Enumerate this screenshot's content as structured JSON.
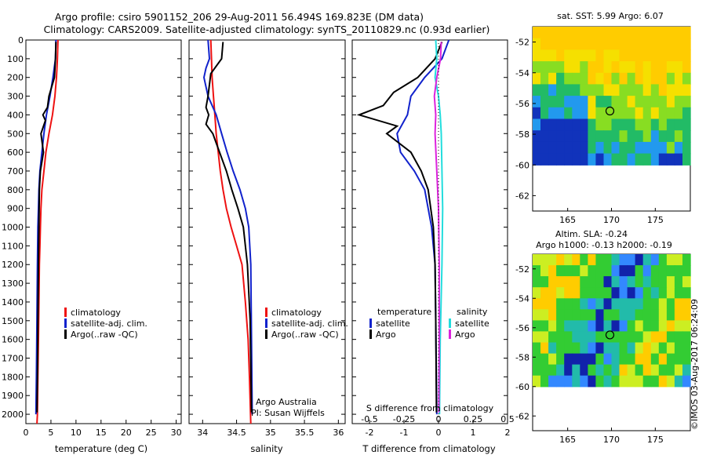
{
  "header": {
    "title_line1": "Argo profile: csiro 5901152_206 29-Aug-2011 56.494S 169.823E (DM data)",
    "title_line2": "Climatology: CARS2009. Satellite-adjusted climatology: synTS_20110829.nc (0.93d earlier)"
  },
  "colors": {
    "climatology": "#ee1111",
    "satellite": "#1122cc",
    "argo": "#000000",
    "salinity_satellite": "#22dddd",
    "salinity_argo": "#dd22dd"
  },
  "chart_data": [
    {
      "type": "line",
      "panel": "temperature",
      "xlabel": "temperature (deg C)",
      "ylabel": "",
      "xlim": [
        0,
        31
      ],
      "xticks": [
        0,
        5,
        10,
        15,
        20,
        25,
        30
      ],
      "ylim": [
        2050,
        0
      ],
      "yticks": [
        0,
        100,
        200,
        300,
        400,
        500,
        600,
        700,
        800,
        900,
        1000,
        1100,
        1200,
        1300,
        1400,
        1500,
        1600,
        1700,
        1800,
        1900,
        2000
      ],
      "legend": [
        "climatology",
        "satellite-adj. clim.",
        "Argo(..raw -QC)"
      ],
      "legend_position": "center",
      "series": [
        {
          "name": "climatology",
          "color": "#ee1111",
          "x": [
            6.4,
            6.3,
            6.1,
            5.8,
            5.3,
            4.6,
            4.0,
            3.6,
            3.2,
            3.0,
            2.9,
            2.8,
            2.7,
            2.6,
            2.5,
            2.4,
            2.3,
            2.2
          ],
          "y": [
            0,
            100,
            200,
            300,
            400,
            500,
            600,
            700,
            800,
            900,
            1000,
            1100,
            1200,
            1400,
            1600,
            1800,
            2000,
            2050
          ]
        },
        {
          "name": "satellite-adj. clim.",
          "color": "#1122cc",
          "x": [
            6.0,
            5.9,
            5.4,
            4.8,
            4.1,
            3.6,
            3.2,
            2.8,
            2.6,
            2.5,
            2.4,
            2.3,
            2.2,
            2.1,
            2.0
          ],
          "y": [
            0,
            100,
            200,
            300,
            400,
            500,
            600,
            700,
            800,
            900,
            1000,
            1200,
            1500,
            1800,
            2000
          ]
        },
        {
          "name": "Argo(..raw -QC)",
          "color": "#000000",
          "x": [
            6.0,
            5.9,
            5.7,
            4.6,
            4.3,
            3.4,
            3.9,
            3.0,
            3.5,
            2.9,
            2.7,
            2.6,
            2.5,
            2.4,
            2.3,
            2.2
          ],
          "y": [
            10,
            100,
            200,
            300,
            360,
            400,
            430,
            500,
            600,
            700,
            800,
            1000,
            1200,
            1500,
            1800,
            1990
          ]
        }
      ]
    },
    {
      "type": "line",
      "panel": "salinity",
      "xlabel": "salinity",
      "ylabel": "",
      "xlim": [
        33.8,
        36.1
      ],
      "xticks": [
        34,
        34.5,
        35,
        35.5,
        36
      ],
      "ylim": [
        2050,
        0
      ],
      "legend": [
        "climatology",
        "satellite-adj. clim.",
        "Argo(..raw -QC)"
      ],
      "legend_position": "center",
      "annotations": [
        "Argo Australia",
        "PI: Susan Wijffels"
      ],
      "series": [
        {
          "name": "climatology",
          "color": "#ee1111",
          "x": [
            34.12,
            34.13,
            34.14,
            34.16,
            34.18,
            34.2,
            34.23,
            34.26,
            34.3,
            34.35,
            34.42,
            34.5,
            34.58,
            34.63,
            34.67,
            34.69,
            34.71
          ],
          "y": [
            0,
            100,
            200,
            300,
            400,
            500,
            600,
            700,
            800,
            900,
            1000,
            1100,
            1200,
            1400,
            1600,
            1800,
            2050
          ]
        },
        {
          "name": "satellite-adj. clim.",
          "color": "#1122cc",
          "x": [
            34.08,
            34.1,
            34.05,
            34.02,
            34.08,
            34.2,
            34.28,
            34.36,
            34.45,
            34.55,
            34.63,
            34.68,
            34.71,
            34.72,
            34.73
          ],
          "y": [
            0,
            100,
            150,
            200,
            300,
            400,
            500,
            600,
            700,
            800,
            900,
            1000,
            1200,
            1600,
            2000
          ]
        },
        {
          "name": "Argo(..raw -QC)",
          "color": "#000000",
          "x": [
            34.3,
            34.28,
            34.12,
            34.08,
            34.05,
            34.09,
            34.05,
            34.15,
            34.25,
            34.35,
            34.43,
            34.52,
            34.6,
            34.66,
            34.7,
            34.72
          ],
          "y": [
            10,
            100,
            180,
            300,
            360,
            400,
            450,
            500,
            600,
            700,
            800,
            900,
            1000,
            1200,
            1500,
            1990
          ]
        }
      ]
    },
    {
      "type": "line",
      "panel": "difference",
      "xlabel": "T difference from climatology",
      "xlabel_top": "S difference from climatology",
      "xlim": [
        -2.5,
        2.0
      ],
      "xticks": [
        -2,
        -1,
        0,
        1,
        2
      ],
      "xticks_salinity": [
        -0.5,
        -0.25,
        0,
        0.25,
        0.5
      ],
      "ylim": [
        2050,
        0
      ],
      "legend_temperature": [
        "temperature",
        "satellite",
        "Argo"
      ],
      "legend_salinity": [
        "salinity",
        "satellite",
        "Argo"
      ],
      "series": [
        {
          "name": "temperature satellite",
          "color": "#1122cc",
          "x": [
            0.3,
            0.1,
            -0.4,
            -0.8,
            -0.9,
            -1.2,
            -1.1,
            -0.7,
            -0.4,
            -0.3,
            -0.2,
            -0.1,
            -0.08,
            -0.05
          ],
          "y": [
            0,
            100,
            200,
            300,
            400,
            500,
            600,
            700,
            800,
            900,
            1000,
            1200,
            1500,
            2000
          ]
        },
        {
          "name": "temperature Argo",
          "color": "#000000",
          "x": [
            0.1,
            -0.1,
            -0.6,
            -1.3,
            -1.6,
            -2.3,
            -1.2,
            -1.5,
            -0.8,
            -0.5,
            -0.3,
            -0.15,
            -0.1,
            -0.08,
            -0.06
          ],
          "y": [
            10,
            100,
            200,
            280,
            350,
            400,
            460,
            500,
            600,
            700,
            800,
            1000,
            1200,
            1500,
            1990
          ]
        },
        {
          "name": "salinity satellite",
          "color": "#22dddd",
          "x": [
            -0.08,
            -0.05,
            -0.1,
            0.0,
            0.05,
            0.08,
            0.1,
            0.12,
            0.1,
            0.05,
            0.03
          ],
          "y": [
            0,
            100,
            200,
            300,
            400,
            500,
            700,
            900,
            1200,
            1600,
            2000
          ]
        },
        {
          "name": "salinity Argo",
          "color": "#dd22dd",
          "x": [
            0.08,
            0.06,
            -0.05,
            -0.12,
            -0.08,
            -0.1,
            -0.05,
            0.0,
            0.02,
            0.02,
            0.01
          ],
          "y": [
            10,
            100,
            200,
            300,
            400,
            500,
            700,
            900,
            1200,
            1600,
            1990
          ]
        }
      ]
    },
    {
      "type": "heatmap",
      "panel": "sst-map",
      "title": "sat. SST: 5.99 Argo: 6.07",
      "xticks": [
        165,
        170,
        175
      ],
      "yticks": [
        -52,
        -54,
        -56,
        -58,
        -60,
        -62
      ],
      "xlim": [
        161,
        179
      ],
      "ylim": [
        -63,
        -51
      ],
      "marker": {
        "lon": 169.82,
        "lat": -56.49
      }
    },
    {
      "type": "heatmap",
      "panel": "sla-map",
      "title_line1": "Altim. SLA: -0.24",
      "title_line2": "Argo h1000: -0.13 h2000: -0.19",
      "xticks": [
        165,
        170,
        175
      ],
      "yticks": [
        -52,
        -54,
        -56,
        -58,
        -60,
        -62
      ],
      "xlim": [
        161,
        179
      ],
      "ylim": [
        -63,
        -51
      ],
      "marker": {
        "lon": 169.82,
        "lat": -56.49
      }
    }
  ],
  "footer": {
    "credit": "©IMOS 03-Aug-2017 06:24:09"
  }
}
